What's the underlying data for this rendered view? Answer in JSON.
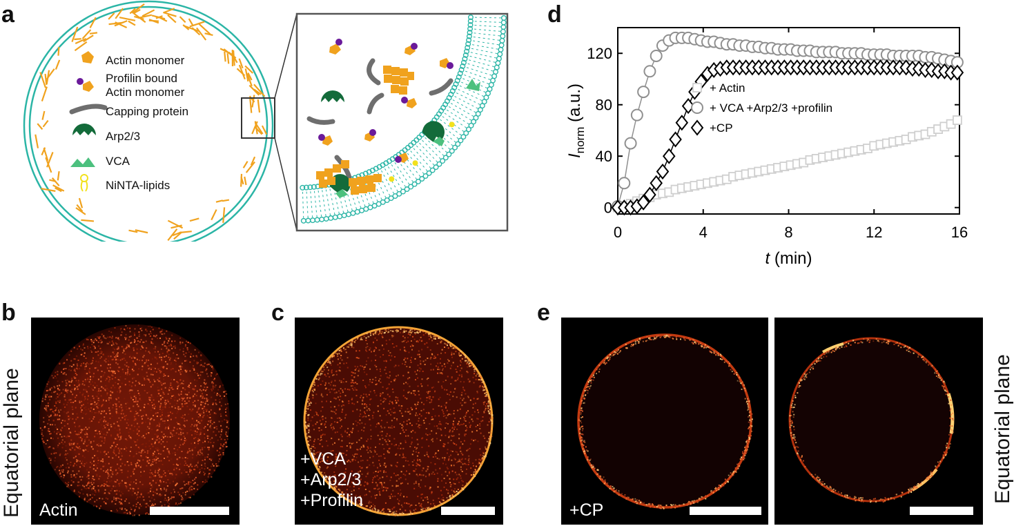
{
  "panels": {
    "a": "a",
    "b": "b",
    "c": "c",
    "d": "d",
    "e": "e"
  },
  "panel_a": {
    "legend": [
      {
        "label": "Actin monomer",
        "icon": "actin-monomer-icon"
      },
      {
        "label": "Profilin bound",
        "label2": "Actin monomer",
        "icon": "profilin-actin-icon"
      },
      {
        "label": "Capping protein",
        "icon": "capping-protein-icon"
      },
      {
        "label": "Arp2/3",
        "icon": "arp23-icon"
      },
      {
        "label": "VCA",
        "icon": "vca-icon"
      },
      {
        "label": "NiNTA-lipids",
        "icon": "ninta-lipid-icon"
      }
    ],
    "colors": {
      "membrane": "#2bb5a6",
      "actin": "#f0a21e",
      "arp": "#136b3a",
      "vca": "#4cc07e",
      "profilin": "#6a1a9a",
      "capping": "#6e6e6e",
      "lipid": "#f2e11c"
    }
  },
  "panel_b": {
    "label": "Actin",
    "side_label": "Equatorial plane"
  },
  "panel_c": {
    "label_lines": [
      "+VCA",
      "+Arp2/3",
      "+Profilin"
    ]
  },
  "panel_e": {
    "label": "+CP",
    "side_label": "Equatorial plane"
  },
  "chart_data": {
    "type": "scatter",
    "xlabel_var": "t",
    "xlabel_unit": "(min)",
    "ylabel_var": "I",
    "ylabel_sub": "norm",
    "ylabel_unit": "(a.u.)",
    "xlim": [
      0,
      16
    ],
    "ylim": [
      -5,
      140
    ],
    "xticks": [
      0,
      4,
      8,
      12,
      16
    ],
    "yticks": [
      0,
      40,
      80,
      120
    ],
    "legend_position": "center-right",
    "series": [
      {
        "name": "+ Actin",
        "marker": "square",
        "color": "#cfcfcf",
        "x": [
          0,
          0.3,
          0.6,
          0.9,
          1.2,
          1.5,
          1.8,
          2.1,
          2.4,
          2.7,
          3.0,
          3.3,
          3.6,
          3.9,
          4.2,
          4.5,
          4.8,
          5.1,
          5.4,
          5.7,
          6.0,
          6.3,
          6.6,
          6.9,
          7.2,
          7.5,
          7.8,
          8.1,
          8.4,
          8.7,
          9.0,
          9.3,
          9.6,
          9.9,
          10.2,
          10.5,
          10.8,
          11.1,
          11.4,
          11.7,
          12.0,
          12.3,
          12.6,
          12.9,
          13.2,
          13.5,
          13.8,
          14.1,
          14.4,
          14.7,
          15.0,
          15.3,
          15.6,
          15.9
        ],
        "y": [
          0,
          1,
          3,
          5,
          7,
          8,
          10,
          11,
          12,
          14,
          15,
          16,
          17,
          18,
          19,
          20,
          21,
          22,
          24,
          25,
          26,
          27,
          28,
          29,
          30,
          31,
          32,
          33,
          34,
          35,
          37,
          38,
          39,
          40,
          41,
          42,
          43,
          44,
          45,
          46,
          48,
          49,
          50,
          51,
          52,
          53,
          55,
          56,
          57,
          59,
          61,
          63,
          65,
          68
        ]
      },
      {
        "name": "+ VCA +Arp2/3 +profilin",
        "marker": "circle",
        "color": "#8f8f8f",
        "x": [
          0,
          0.3,
          0.6,
          0.9,
          1.2,
          1.5,
          1.8,
          2.1,
          2.4,
          2.7,
          3.0,
          3.3,
          3.6,
          3.9,
          4.2,
          4.5,
          4.8,
          5.1,
          5.4,
          5.7,
          6.0,
          6.3,
          6.6,
          6.9,
          7.2,
          7.5,
          7.8,
          8.1,
          8.4,
          8.7,
          9.0,
          9.3,
          9.6,
          9.9,
          10.2,
          10.5,
          10.8,
          11.1,
          11.4,
          11.7,
          12.0,
          12.3,
          12.6,
          12.9,
          13.2,
          13.5,
          13.8,
          14.1,
          14.4,
          14.7,
          15.0,
          15.3,
          15.6,
          15.9
        ],
        "y": [
          1,
          19,
          50,
          72,
          90,
          106,
          118,
          126,
          130,
          132,
          132,
          132,
          131,
          130,
          129,
          129,
          128,
          127,
          127,
          126,
          126,
          125,
          125,
          124,
          124,
          123,
          123,
          123,
          122,
          122,
          122,
          121,
          121,
          121,
          121,
          120,
          120,
          120,
          120,
          119,
          119,
          119,
          119,
          118,
          118,
          118,
          118,
          118,
          117,
          117,
          116,
          115,
          114,
          113
        ]
      },
      {
        "name": "+CP",
        "marker": "diamond",
        "color": "#000000",
        "x": [
          0,
          0.3,
          0.6,
          0.9,
          1.2,
          1.5,
          1.8,
          2.1,
          2.4,
          2.7,
          3.0,
          3.3,
          3.6,
          3.9,
          4.2,
          4.5,
          4.8,
          5.1,
          5.4,
          5.7,
          6.0,
          6.3,
          6.6,
          6.9,
          7.2,
          7.5,
          7.8,
          8.1,
          8.4,
          8.7,
          9.0,
          9.3,
          9.6,
          9.9,
          10.2,
          10.5,
          10.8,
          11.1,
          11.4,
          11.7,
          12.0,
          12.3,
          12.6,
          12.9,
          13.2,
          13.5,
          13.8,
          14.1,
          14.4,
          14.7,
          15.0,
          15.3,
          15.6,
          15.9
        ],
        "y": [
          0,
          0,
          0,
          1,
          4,
          10,
          19,
          28,
          40,
          53,
          66,
          79,
          90,
          98,
          104,
          107,
          108,
          109,
          109,
          109,
          109,
          109,
          109,
          109,
          109,
          109,
          109,
          109,
          109,
          109,
          109,
          109,
          109,
          109,
          109,
          109,
          109,
          109,
          109,
          109,
          109,
          109,
          109,
          109,
          109,
          109,
          108,
          108,
          107,
          107,
          106,
          106,
          105,
          105
        ]
      }
    ]
  }
}
